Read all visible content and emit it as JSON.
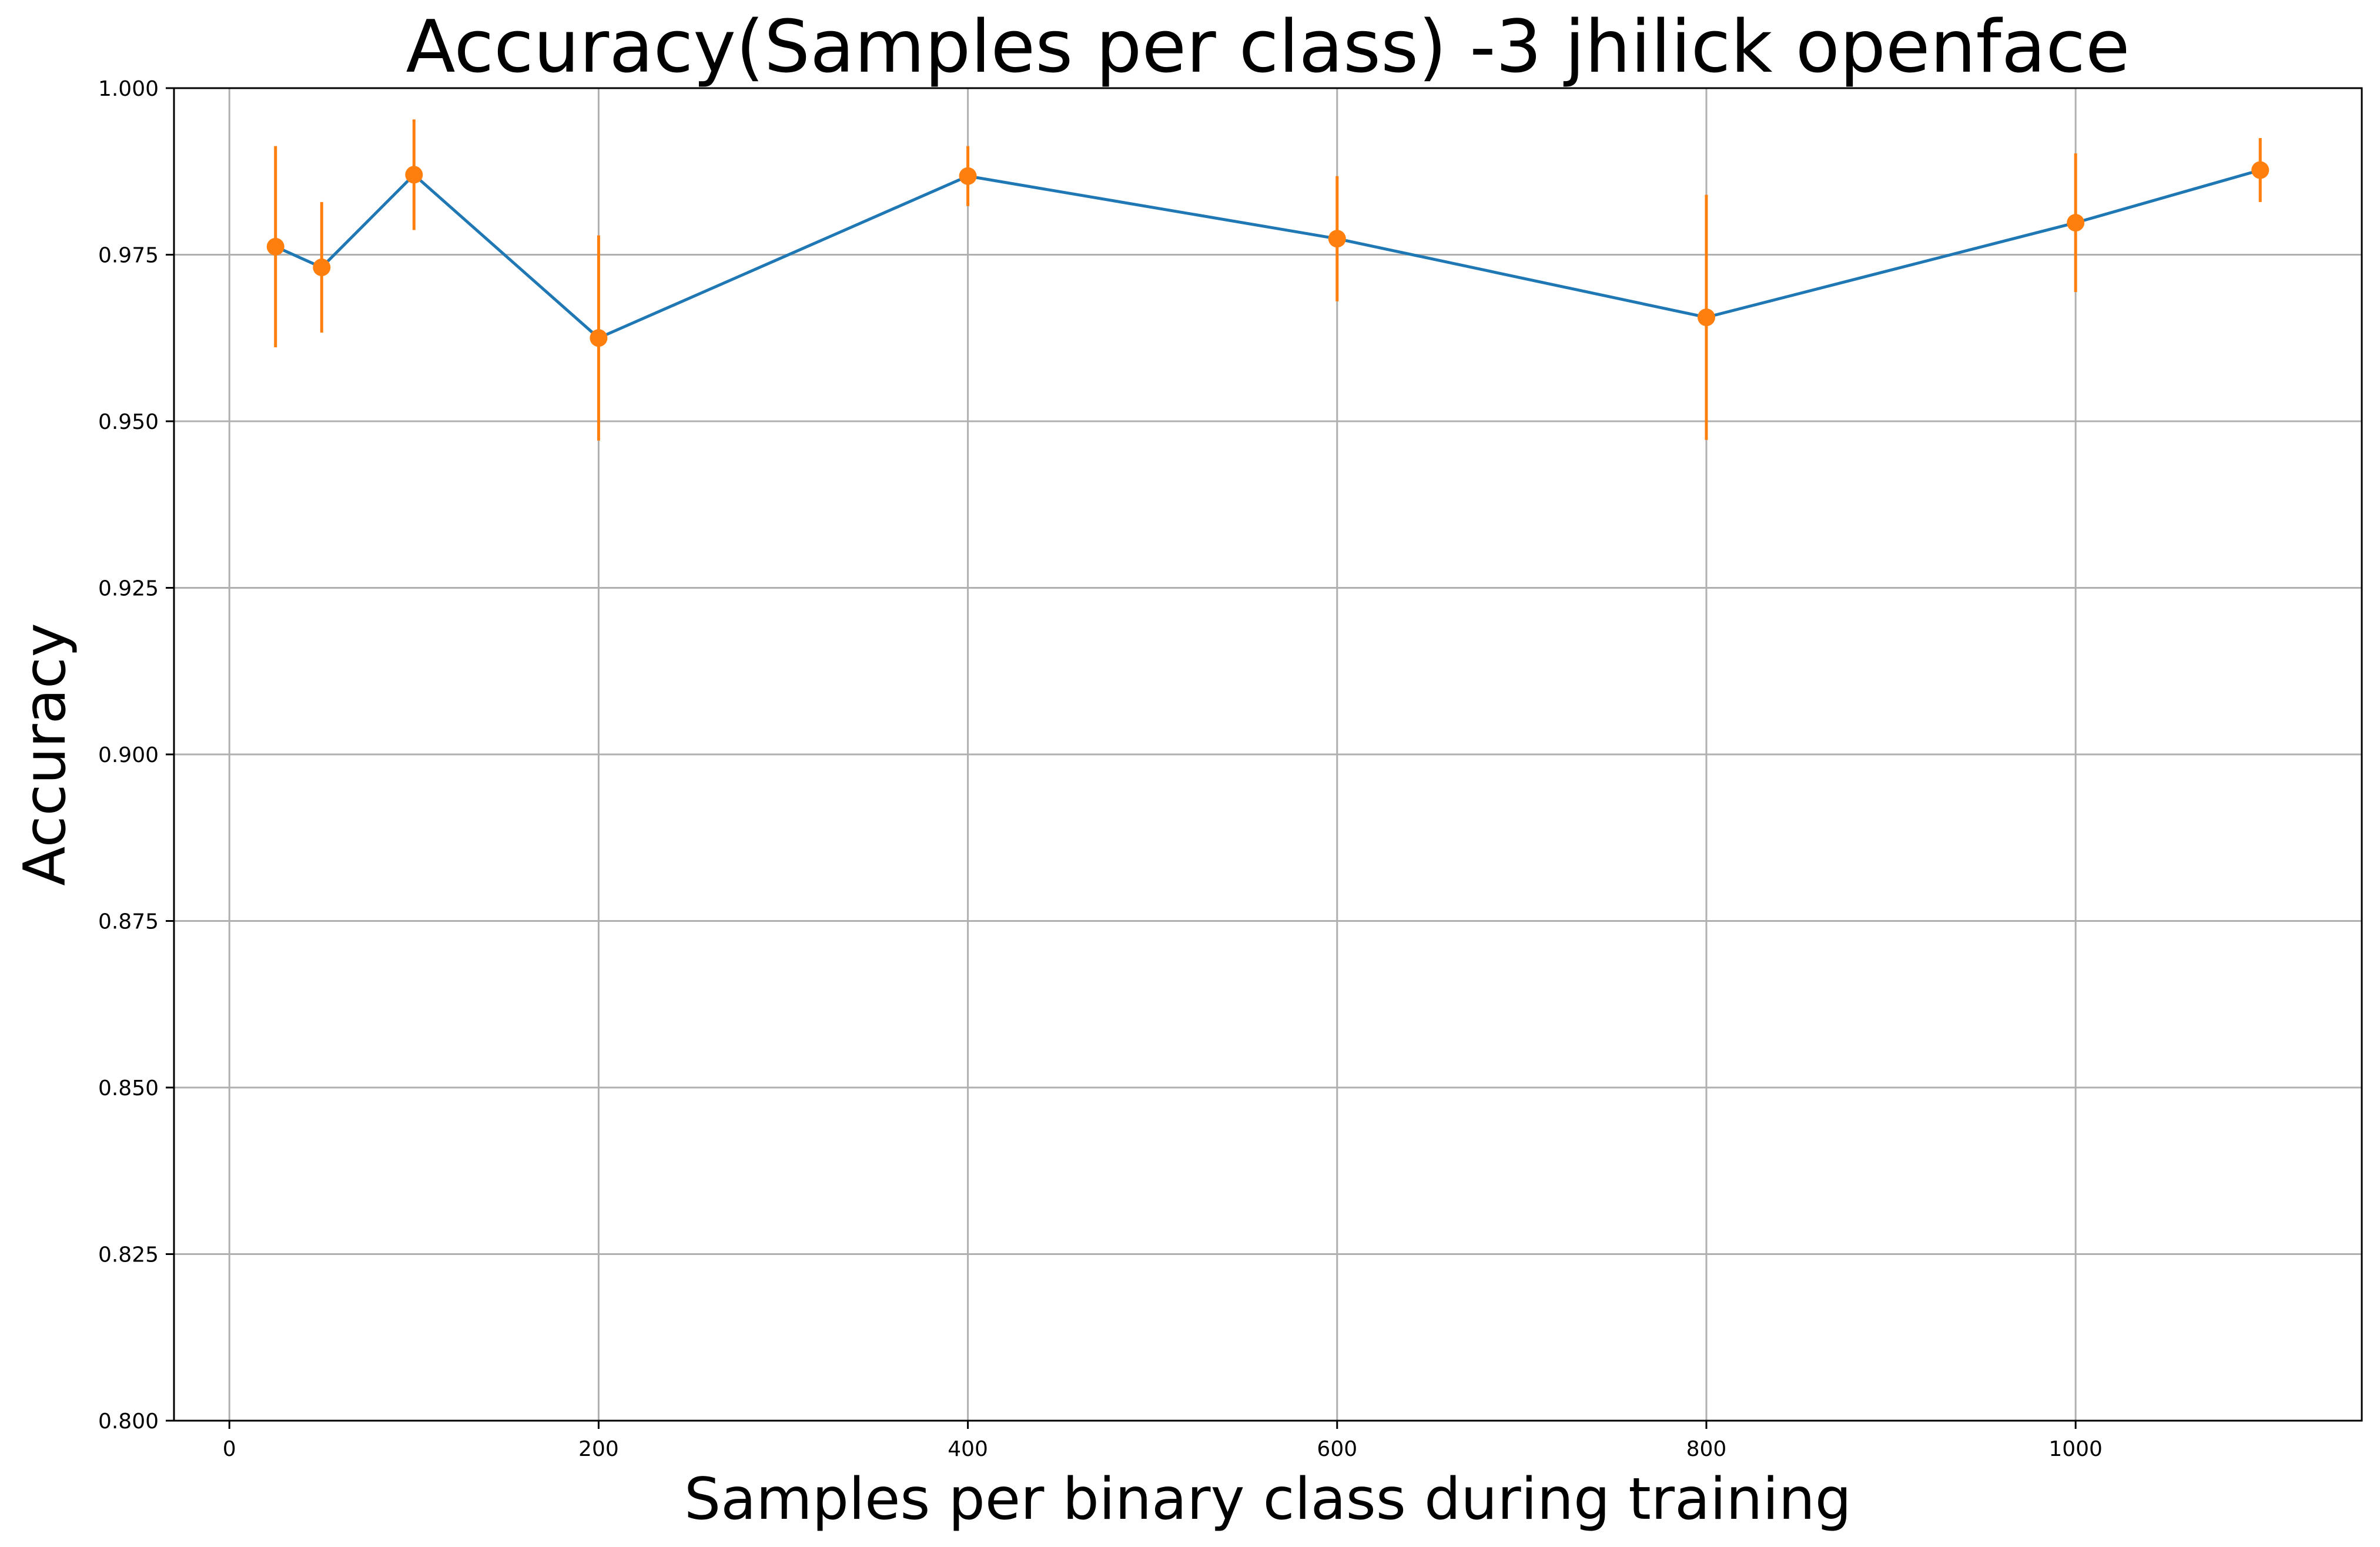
{
  "chart_data": {
    "type": "line",
    "title": "Accuracy(Samples per class) -3 jhilick openface",
    "xlabel": "Samples per binary class during training",
    "ylabel": "Accuracy",
    "xlim": [
      -30,
      1155
    ],
    "ylim": [
      0.8,
      1.0
    ],
    "xticks": [
      0,
      200,
      400,
      600,
      800,
      1000
    ],
    "yticks": [
      0.8,
      0.825,
      0.85,
      0.875,
      0.9,
      0.925,
      0.95,
      0.975,
      1.0
    ],
    "xtick_labels": [
      "0",
      "200",
      "400",
      "600",
      "800",
      "1000"
    ],
    "ytick_labels": [
      "0.800",
      "0.825",
      "0.850",
      "0.875",
      "0.900",
      "0.925",
      "0.950",
      "0.975",
      "1.000"
    ],
    "grid": true,
    "x": [
      25,
      50,
      100,
      200,
      400,
      600,
      800,
      1000,
      1100
    ],
    "series": [
      {
        "values": [
          0.9762,
          0.9731,
          0.987,
          0.9625,
          0.9868,
          0.9774,
          0.9656,
          0.9798,
          0.9877
        ],
        "error": [
          0.0151,
          0.0098,
          0.0083,
          0.0154,
          0.0045,
          0.0094,
          0.0184,
          0.0104,
          0.0048
        ],
        "line_color": "#1f77b4",
        "marker_color": "#ff7f0e"
      }
    ]
  }
}
